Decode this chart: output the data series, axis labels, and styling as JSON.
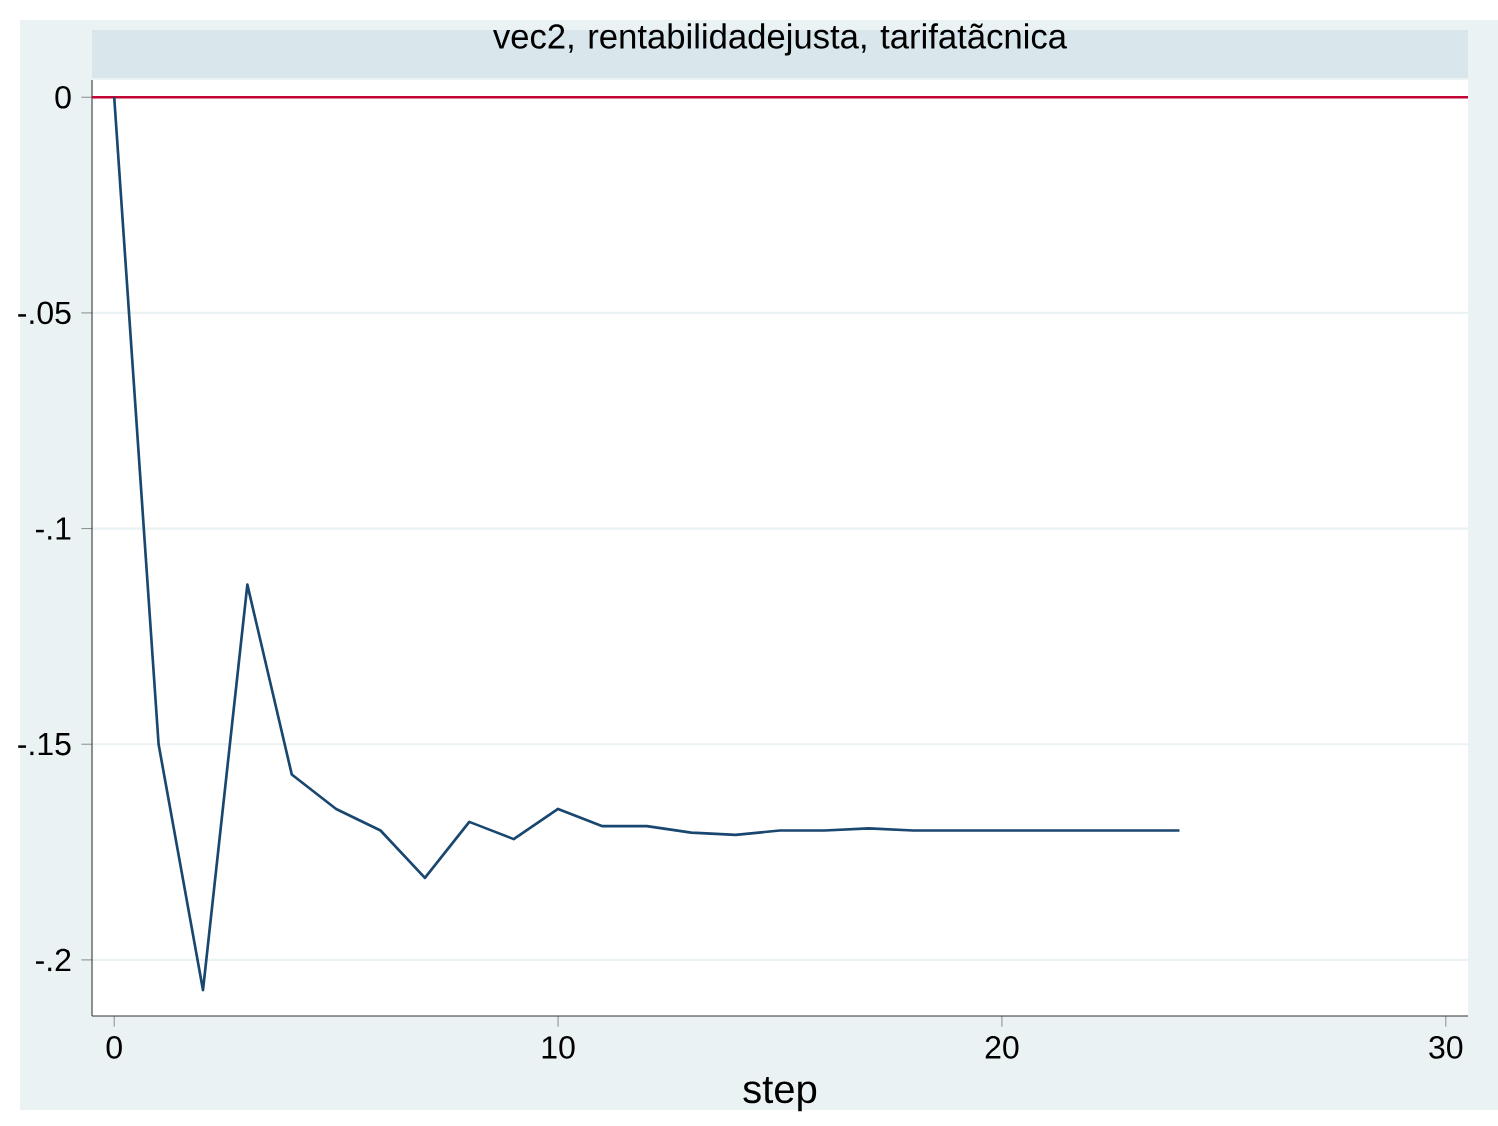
{
  "chart_data": {
    "type": "line",
    "title": "vec2, rentabilidadejusta, tarifatãcnica",
    "xlabel": "step",
    "x": [
      0,
      1,
      2,
      3,
      4,
      5,
      6,
      7,
      8,
      9,
      10,
      11,
      12,
      13,
      14,
      15,
      16,
      17,
      18,
      19,
      20,
      21,
      22,
      23,
      24
    ],
    "series": [
      {
        "color": "#1a476f",
        "values": [
          0,
          -0.15,
          -0.207,
          -0.113,
          -0.157,
          -0.165,
          -0.17,
          -0.181,
          -0.168,
          -0.172,
          -0.165,
          -0.169,
          -0.169,
          -0.1705,
          -0.171,
          -0.17,
          -0.17,
          -0.1695,
          -0.17,
          -0.17,
          -0.17,
          -0.17,
          -0.17,
          -0.17,
          -0.17
        ]
      }
    ],
    "xlim": [
      -0.5,
      30.5
    ],
    "ylim": [
      -0.213,
      0.004
    ],
    "xticks": [
      0,
      10,
      20,
      30
    ],
    "yticks": [
      {
        "value": -0.2,
        "label": "-.2"
      },
      {
        "value": -0.15,
        "label": "-.15"
      },
      {
        "value": -0.1,
        "label": "-.1"
      },
      {
        "value": -0.05,
        "label": "-.05"
      },
      0
    ],
    "grid": "y",
    "ref_lines": [
      {
        "axis": "y",
        "value": 0,
        "color": "#c10534"
      }
    ]
  }
}
